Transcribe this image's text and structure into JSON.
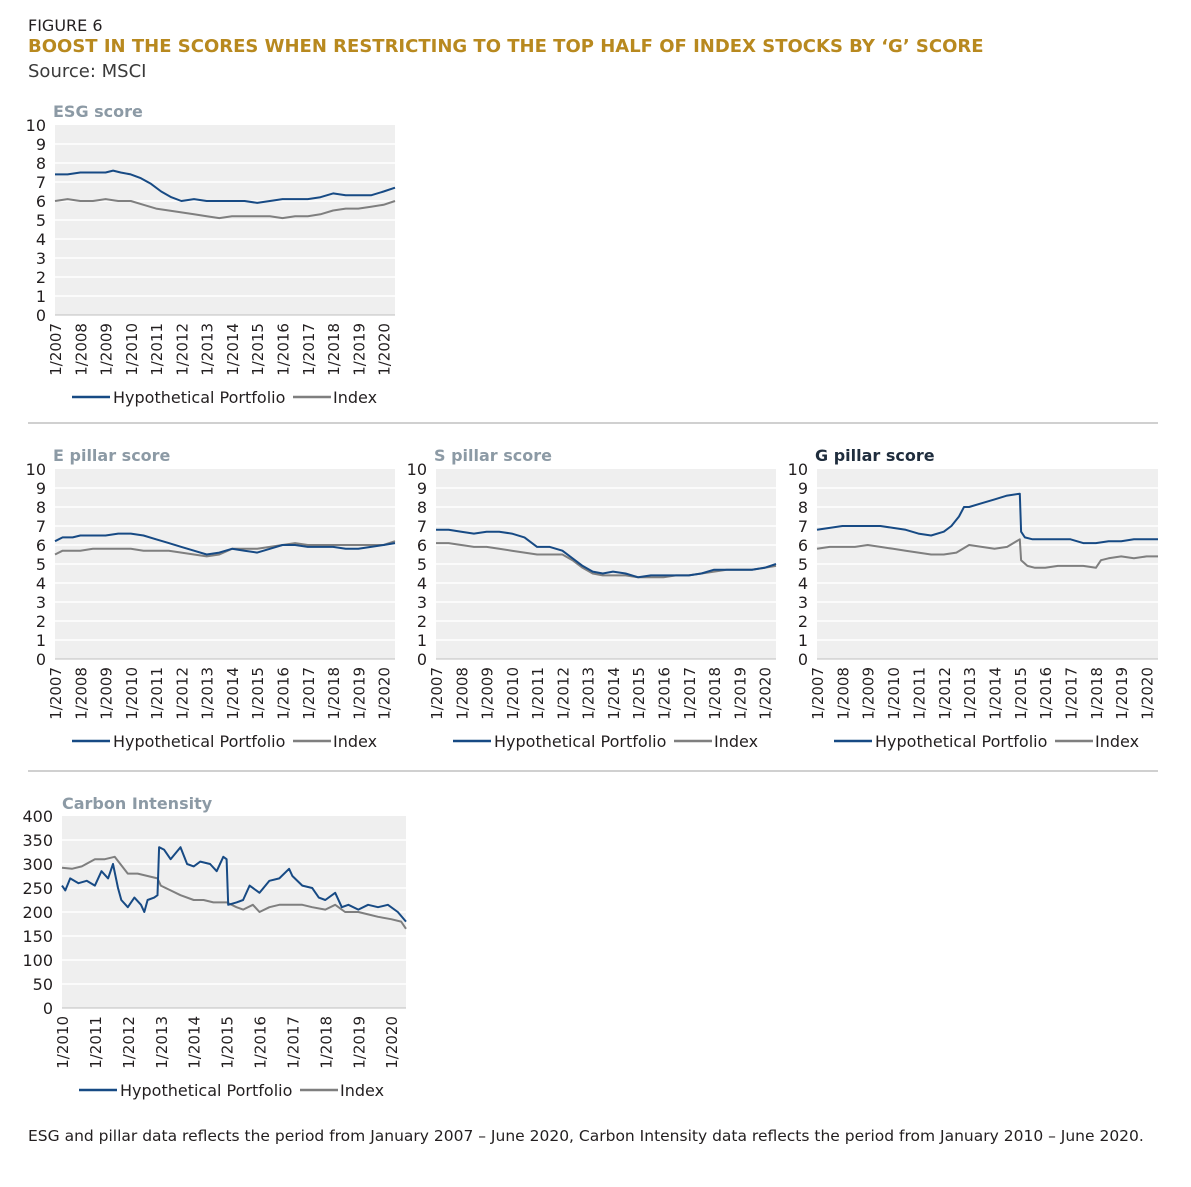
{
  "header": {
    "figure_label": "FIGURE 6",
    "title": "BOOST IN THE SCORES WHEN RESTRICTING TO THE TOP HALF OF INDEX STOCKS BY ‘G’ SCORE",
    "source": "Source: MSCI"
  },
  "footnote": "ESG and pillar data reflects the period from January 2007 – June 2020, Carbon Intensity data reflects the period from January 2010 – June 2020.",
  "colors": {
    "portfolio": "#174a84",
    "index": "#7f7f7f",
    "plot_bg": "#efefef",
    "grid": "#ffffff",
    "title_gold": "#b8891f",
    "chart_title_grey": "#8c9aa5",
    "chart_title_dark": "#1f2d3d"
  },
  "chart_data": [
    {
      "id": "esg",
      "type": "line",
      "title": "ESG score",
      "xlabel": "",
      "ylabel": "",
      "ylim": [
        0,
        10
      ],
      "yticks": [
        "0",
        "1",
        "2",
        "3",
        "4",
        "5",
        "6",
        "7",
        "8",
        "9",
        "10"
      ],
      "xlim": [
        2007.0,
        2020.45
      ],
      "xtick_labels": [
        "1/2007",
        "1/2008",
        "1/2009",
        "1/2010",
        "1/2011",
        "1/2012",
        "1/2013",
        "1/2014",
        "1/2015",
        "1/2016",
        "1/2017",
        "1/2018",
        "1/2019",
        "1/2020"
      ],
      "grid": true,
      "legend": "bottom",
      "series": [
        {
          "name": "Hypothetical Portfolio",
          "x": [
            2007,
            2007.5,
            2008,
            2008.5,
            2009,
            2009.3,
            2009.6,
            2010,
            2010.4,
            2010.8,
            2011.2,
            2011.6,
            2012,
            2012.5,
            2013,
            2013.5,
            2014,
            2014.5,
            2015,
            2015.5,
            2016,
            2016.5,
            2017,
            2017.5,
            2018,
            2018.5,
            2019,
            2019.5,
            2020,
            2020.45
          ],
          "y": [
            7.4,
            7.4,
            7.5,
            7.5,
            7.5,
            7.6,
            7.5,
            7.4,
            7.2,
            6.9,
            6.5,
            6.2,
            6.0,
            6.1,
            6.0,
            6.0,
            6.0,
            6.0,
            5.9,
            6.0,
            6.1,
            6.1,
            6.1,
            6.2,
            6.4,
            6.3,
            6.3,
            6.3,
            6.5,
            6.7
          ]
        },
        {
          "name": "Index",
          "x": [
            2007,
            2007.5,
            2008,
            2008.5,
            2009,
            2009.5,
            2010,
            2010.5,
            2011,
            2011.5,
            2012,
            2012.5,
            2013,
            2013.5,
            2014,
            2014.5,
            2015,
            2015.5,
            2016,
            2016.5,
            2017,
            2017.5,
            2018,
            2018.5,
            2019,
            2019.5,
            2020,
            2020.45
          ],
          "y": [
            6.0,
            6.1,
            6.0,
            6.0,
            6.1,
            6.0,
            6.0,
            5.8,
            5.6,
            5.5,
            5.4,
            5.3,
            5.2,
            5.1,
            5.2,
            5.2,
            5.2,
            5.2,
            5.1,
            5.2,
            5.2,
            5.3,
            5.5,
            5.6,
            5.6,
            5.7,
            5.8,
            6.0
          ]
        }
      ]
    },
    {
      "id": "e",
      "type": "line",
      "title": "E pillar score",
      "xlabel": "",
      "ylabel": "",
      "ylim": [
        0,
        10
      ],
      "yticks": [
        "0",
        "1",
        "2",
        "3",
        "4",
        "5",
        "6",
        "7",
        "8",
        "9",
        "10"
      ],
      "xlim": [
        2007.0,
        2020.45
      ],
      "xtick_labels": [
        "1/2007",
        "1/2008",
        "1/2009",
        "1/2010",
        "1/2011",
        "1/2012",
        "1/2013",
        "1/2014",
        "1/2015",
        "1/2016",
        "1/2017",
        "1/2018",
        "1/2019",
        "1/2020"
      ],
      "grid": true,
      "legend": "bottom",
      "series": [
        {
          "name": "Hypothetical Portfolio",
          "x": [
            2007,
            2007.3,
            2007.7,
            2008,
            2008.5,
            2009,
            2009.5,
            2010,
            2010.5,
            2011,
            2011.5,
            2012,
            2012.5,
            2013,
            2013.5,
            2014,
            2014.5,
            2015,
            2015.5,
            2016,
            2016.5,
            2017,
            2017.5,
            2018,
            2018.5,
            2019,
            2019.5,
            2020,
            2020.45
          ],
          "y": [
            6.2,
            6.4,
            6.4,
            6.5,
            6.5,
            6.5,
            6.6,
            6.6,
            6.5,
            6.3,
            6.1,
            5.9,
            5.7,
            5.5,
            5.6,
            5.8,
            5.7,
            5.6,
            5.8,
            6.0,
            6.0,
            5.9,
            5.9,
            5.9,
            5.8,
            5.8,
            5.9,
            6.0,
            6.1
          ]
        },
        {
          "name": "Index",
          "x": [
            2007,
            2007.3,
            2007.7,
            2008,
            2008.5,
            2009,
            2009.5,
            2010,
            2010.5,
            2011,
            2011.5,
            2012,
            2012.5,
            2013,
            2013.5,
            2014,
            2014.5,
            2015,
            2015.5,
            2016,
            2016.5,
            2017,
            2017.5,
            2018,
            2018.5,
            2019,
            2019.5,
            2020,
            2020.45
          ],
          "y": [
            5.5,
            5.7,
            5.7,
            5.7,
            5.8,
            5.8,
            5.8,
            5.8,
            5.7,
            5.7,
            5.7,
            5.6,
            5.5,
            5.4,
            5.5,
            5.8,
            5.8,
            5.8,
            5.9,
            6.0,
            6.1,
            6.0,
            6.0,
            6.0,
            6.0,
            6.0,
            6.0,
            6.0,
            6.2
          ]
        }
      ]
    },
    {
      "id": "s",
      "type": "line",
      "title": "S pillar score",
      "xlabel": "",
      "ylabel": "",
      "ylim": [
        0,
        10
      ],
      "yticks": [
        "0",
        "1",
        "2",
        "3",
        "4",
        "5",
        "6",
        "7",
        "8",
        "9",
        "10"
      ],
      "xlim": [
        2007.0,
        2020.45
      ],
      "xtick_labels": [
        "1/2007",
        "1/2008",
        "1/2009",
        "1/2010",
        "1/2011",
        "1/2012",
        "1/2013",
        "1/2014",
        "1/2015",
        "1/2016",
        "1/2017",
        "1/2018",
        "1/2019",
        "1/2020"
      ],
      "grid": true,
      "legend": "bottom",
      "series": [
        {
          "name": "Hypothetical Portfolio",
          "x": [
            2007,
            2007.5,
            2008,
            2008.5,
            2009,
            2009.5,
            2010,
            2010.5,
            2011,
            2011.5,
            2012,
            2012.4,
            2012.8,
            2013.2,
            2013.6,
            2014,
            2014.5,
            2015,
            2015.5,
            2016,
            2016.5,
            2017,
            2017.5,
            2018,
            2018.5,
            2019,
            2019.5,
            2020,
            2020.45
          ],
          "y": [
            6.8,
            6.8,
            6.7,
            6.6,
            6.7,
            6.7,
            6.6,
            6.4,
            5.9,
            5.9,
            5.7,
            5.3,
            4.9,
            4.6,
            4.5,
            4.6,
            4.5,
            4.3,
            4.4,
            4.4,
            4.4,
            4.4,
            4.5,
            4.7,
            4.7,
            4.7,
            4.7,
            4.8,
            5.0
          ]
        },
        {
          "name": "Index",
          "x": [
            2007,
            2007.5,
            2008,
            2008.5,
            2009,
            2009.5,
            2010,
            2010.5,
            2011,
            2011.5,
            2012,
            2012.4,
            2012.8,
            2013.2,
            2013.6,
            2014,
            2014.5,
            2015,
            2015.5,
            2016,
            2016.5,
            2017,
            2017.5,
            2018,
            2018.5,
            2019,
            2019.5,
            2020,
            2020.45
          ],
          "y": [
            6.1,
            6.1,
            6.0,
            5.9,
            5.9,
            5.8,
            5.7,
            5.6,
            5.5,
            5.5,
            5.5,
            5.2,
            4.8,
            4.5,
            4.4,
            4.4,
            4.4,
            4.3,
            4.3,
            4.3,
            4.4,
            4.4,
            4.5,
            4.6,
            4.7,
            4.7,
            4.7,
            4.8,
            4.9
          ]
        }
      ]
    },
    {
      "id": "g",
      "type": "line",
      "title": "G pillar score",
      "xlabel": "",
      "ylabel": "",
      "ylim": [
        0,
        10
      ],
      "yticks": [
        "0",
        "1",
        "2",
        "3",
        "4",
        "5",
        "6",
        "7",
        "8",
        "9",
        "10"
      ],
      "xlim": [
        2007.0,
        2020.45
      ],
      "xtick_labels": [
        "1/2007",
        "1/2008",
        "1/2009",
        "1/2010",
        "1/2011",
        "1/2012",
        "1/2013",
        "1/2014",
        "1/2015",
        "1/2016",
        "1/2017",
        "1/2018",
        "1/2019",
        "1/2020"
      ],
      "grid": true,
      "legend": "bottom",
      "series": [
        {
          "name": "Hypothetical Portfolio",
          "x": [
            2007,
            2007.5,
            2008,
            2008.5,
            2009,
            2009.5,
            2010,
            2010.5,
            2011,
            2011.5,
            2012,
            2012.3,
            2012.6,
            2012.8,
            2013,
            2013.5,
            2014,
            2014.5,
            2015,
            2015.05,
            2015.2,
            2015.5,
            2016,
            2016.5,
            2017,
            2017.5,
            2018,
            2018.5,
            2019,
            2019.5,
            2020,
            2020.45
          ],
          "y": [
            6.8,
            6.9,
            7.0,
            7.0,
            7.0,
            7.0,
            6.9,
            6.8,
            6.6,
            6.5,
            6.7,
            7.0,
            7.5,
            8.0,
            8.0,
            8.2,
            8.4,
            8.6,
            8.7,
            6.7,
            6.4,
            6.3,
            6.3,
            6.3,
            6.3,
            6.1,
            6.1,
            6.2,
            6.2,
            6.3,
            6.3,
            6.3
          ]
        },
        {
          "name": "Index",
          "x": [
            2007,
            2007.5,
            2008,
            2008.5,
            2009,
            2009.5,
            2010,
            2010.5,
            2011,
            2011.5,
            2012,
            2012.5,
            2013,
            2013.5,
            2014,
            2014.5,
            2015,
            2015.05,
            2015.3,
            2015.6,
            2016,
            2016.5,
            2017,
            2017.5,
            2018,
            2018.2,
            2018.5,
            2019,
            2019.5,
            2020,
            2020.45
          ],
          "y": [
            5.8,
            5.9,
            5.9,
            5.9,
            6.0,
            5.9,
            5.8,
            5.7,
            5.6,
            5.5,
            5.5,
            5.6,
            6.0,
            5.9,
            5.8,
            5.9,
            6.3,
            5.2,
            4.9,
            4.8,
            4.8,
            4.9,
            4.9,
            4.9,
            4.8,
            5.2,
            5.3,
            5.4,
            5.3,
            5.4,
            5.4
          ]
        }
      ]
    },
    {
      "id": "carbon",
      "type": "line",
      "title": "Carbon Intensity",
      "xlabel": "",
      "ylabel": "",
      "ylim": [
        0,
        400
      ],
      "yticks": [
        "0",
        "50",
        "100",
        "150",
        "200",
        "250",
        "300",
        "350",
        "400"
      ],
      "xlim": [
        2010.0,
        2020.45
      ],
      "xtick_labels": [
        "1/2010",
        "1/2011",
        "1/2012",
        "1/2013",
        "1/2014",
        "1/2015",
        "1/2016",
        "1/2017",
        "1/2018",
        "1/2019",
        "1/2020"
      ],
      "grid": true,
      "legend": "bottom",
      "series": [
        {
          "name": "Hypothetical Portfolio",
          "x": [
            2010,
            2010.1,
            2010.25,
            2010.5,
            2010.75,
            2011,
            2011.2,
            2011.4,
            2011.55,
            2011.7,
            2011.8,
            2012,
            2012.2,
            2012.4,
            2012.5,
            2012.6,
            2012.8,
            2012.9,
            2012.95,
            2013.1,
            2013.3,
            2013.6,
            2013.8,
            2014,
            2014.2,
            2014.5,
            2014.7,
            2014.9,
            2015,
            2015.05,
            2015.3,
            2015.5,
            2015.7,
            2016,
            2016.3,
            2016.6,
            2016.9,
            2017,
            2017.3,
            2017.6,
            2017.8,
            2018,
            2018.3,
            2018.5,
            2018.7,
            2019,
            2019.3,
            2019.6,
            2019.9,
            2020.2,
            2020.45
          ],
          "y": [
            255,
            245,
            270,
            260,
            265,
            255,
            285,
            270,
            300,
            250,
            225,
            210,
            230,
            215,
            200,
            225,
            230,
            235,
            335,
            330,
            310,
            335,
            300,
            295,
            305,
            300,
            285,
            315,
            310,
            215,
            220,
            225,
            255,
            240,
            265,
            270,
            290,
            275,
            255,
            250,
            230,
            225,
            240,
            210,
            215,
            205,
            215,
            210,
            215,
            200,
            180
          ]
        },
        {
          "name": "Index",
          "x": [
            2010,
            2010.3,
            2010.6,
            2011,
            2011.3,
            2011.6,
            2012,
            2012.3,
            2012.6,
            2012.9,
            2013,
            2013.3,
            2013.6,
            2014,
            2014.3,
            2014.6,
            2015,
            2015.3,
            2015.5,
            2015.8,
            2016,
            2016.3,
            2016.6,
            2017,
            2017.3,
            2017.6,
            2018,
            2018.3,
            2018.6,
            2019,
            2019.3,
            2019.6,
            2020,
            2020.3,
            2020.45
          ],
          "y": [
            292,
            290,
            295,
            310,
            310,
            315,
            280,
            280,
            275,
            270,
            255,
            245,
            235,
            225,
            225,
            220,
            220,
            210,
            205,
            215,
            200,
            210,
            215,
            215,
            215,
            210,
            205,
            215,
            200,
            200,
            195,
            190,
            185,
            180,
            165
          ]
        }
      ]
    }
  ]
}
